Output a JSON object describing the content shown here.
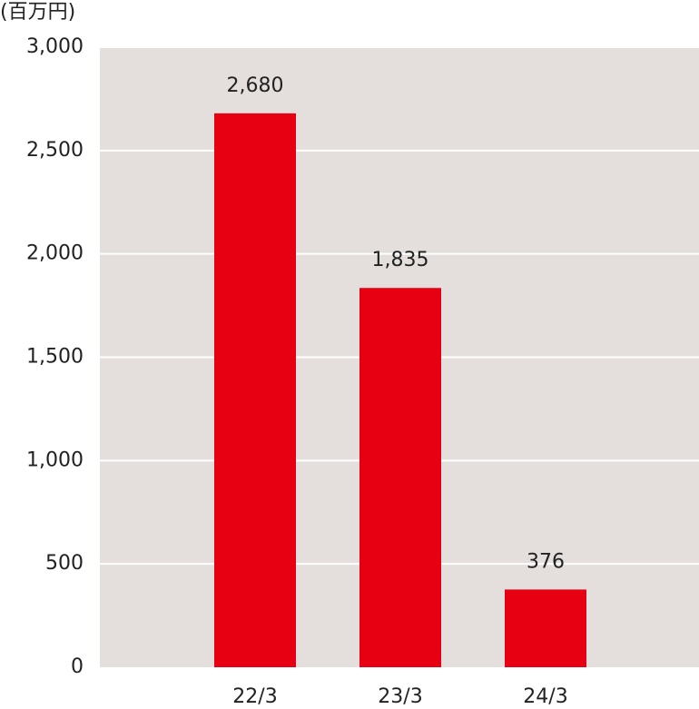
{
  "chart_data": {
    "type": "bar",
    "unit_label": "(百万円)",
    "categories": [
      "22/3",
      "23/3",
      "24/3"
    ],
    "values": [
      2680,
      1835,
      376
    ],
    "value_labels": [
      "2,680",
      "1,835",
      "376"
    ],
    "color": "#e60012",
    "ylim": [
      0,
      3000
    ],
    "yticks": [
      0,
      500,
      {
        "value": 1000,
        "label": "1,000"
      },
      {
        "value": 1500,
        "label": "1,500"
      },
      {
        "value": 2000,
        "label": "2,000"
      },
      {
        "value": 2500,
        "label": "2,500"
      },
      {
        "value": 3000,
        "label": "3,000"
      }
    ],
    "grid": true
  }
}
